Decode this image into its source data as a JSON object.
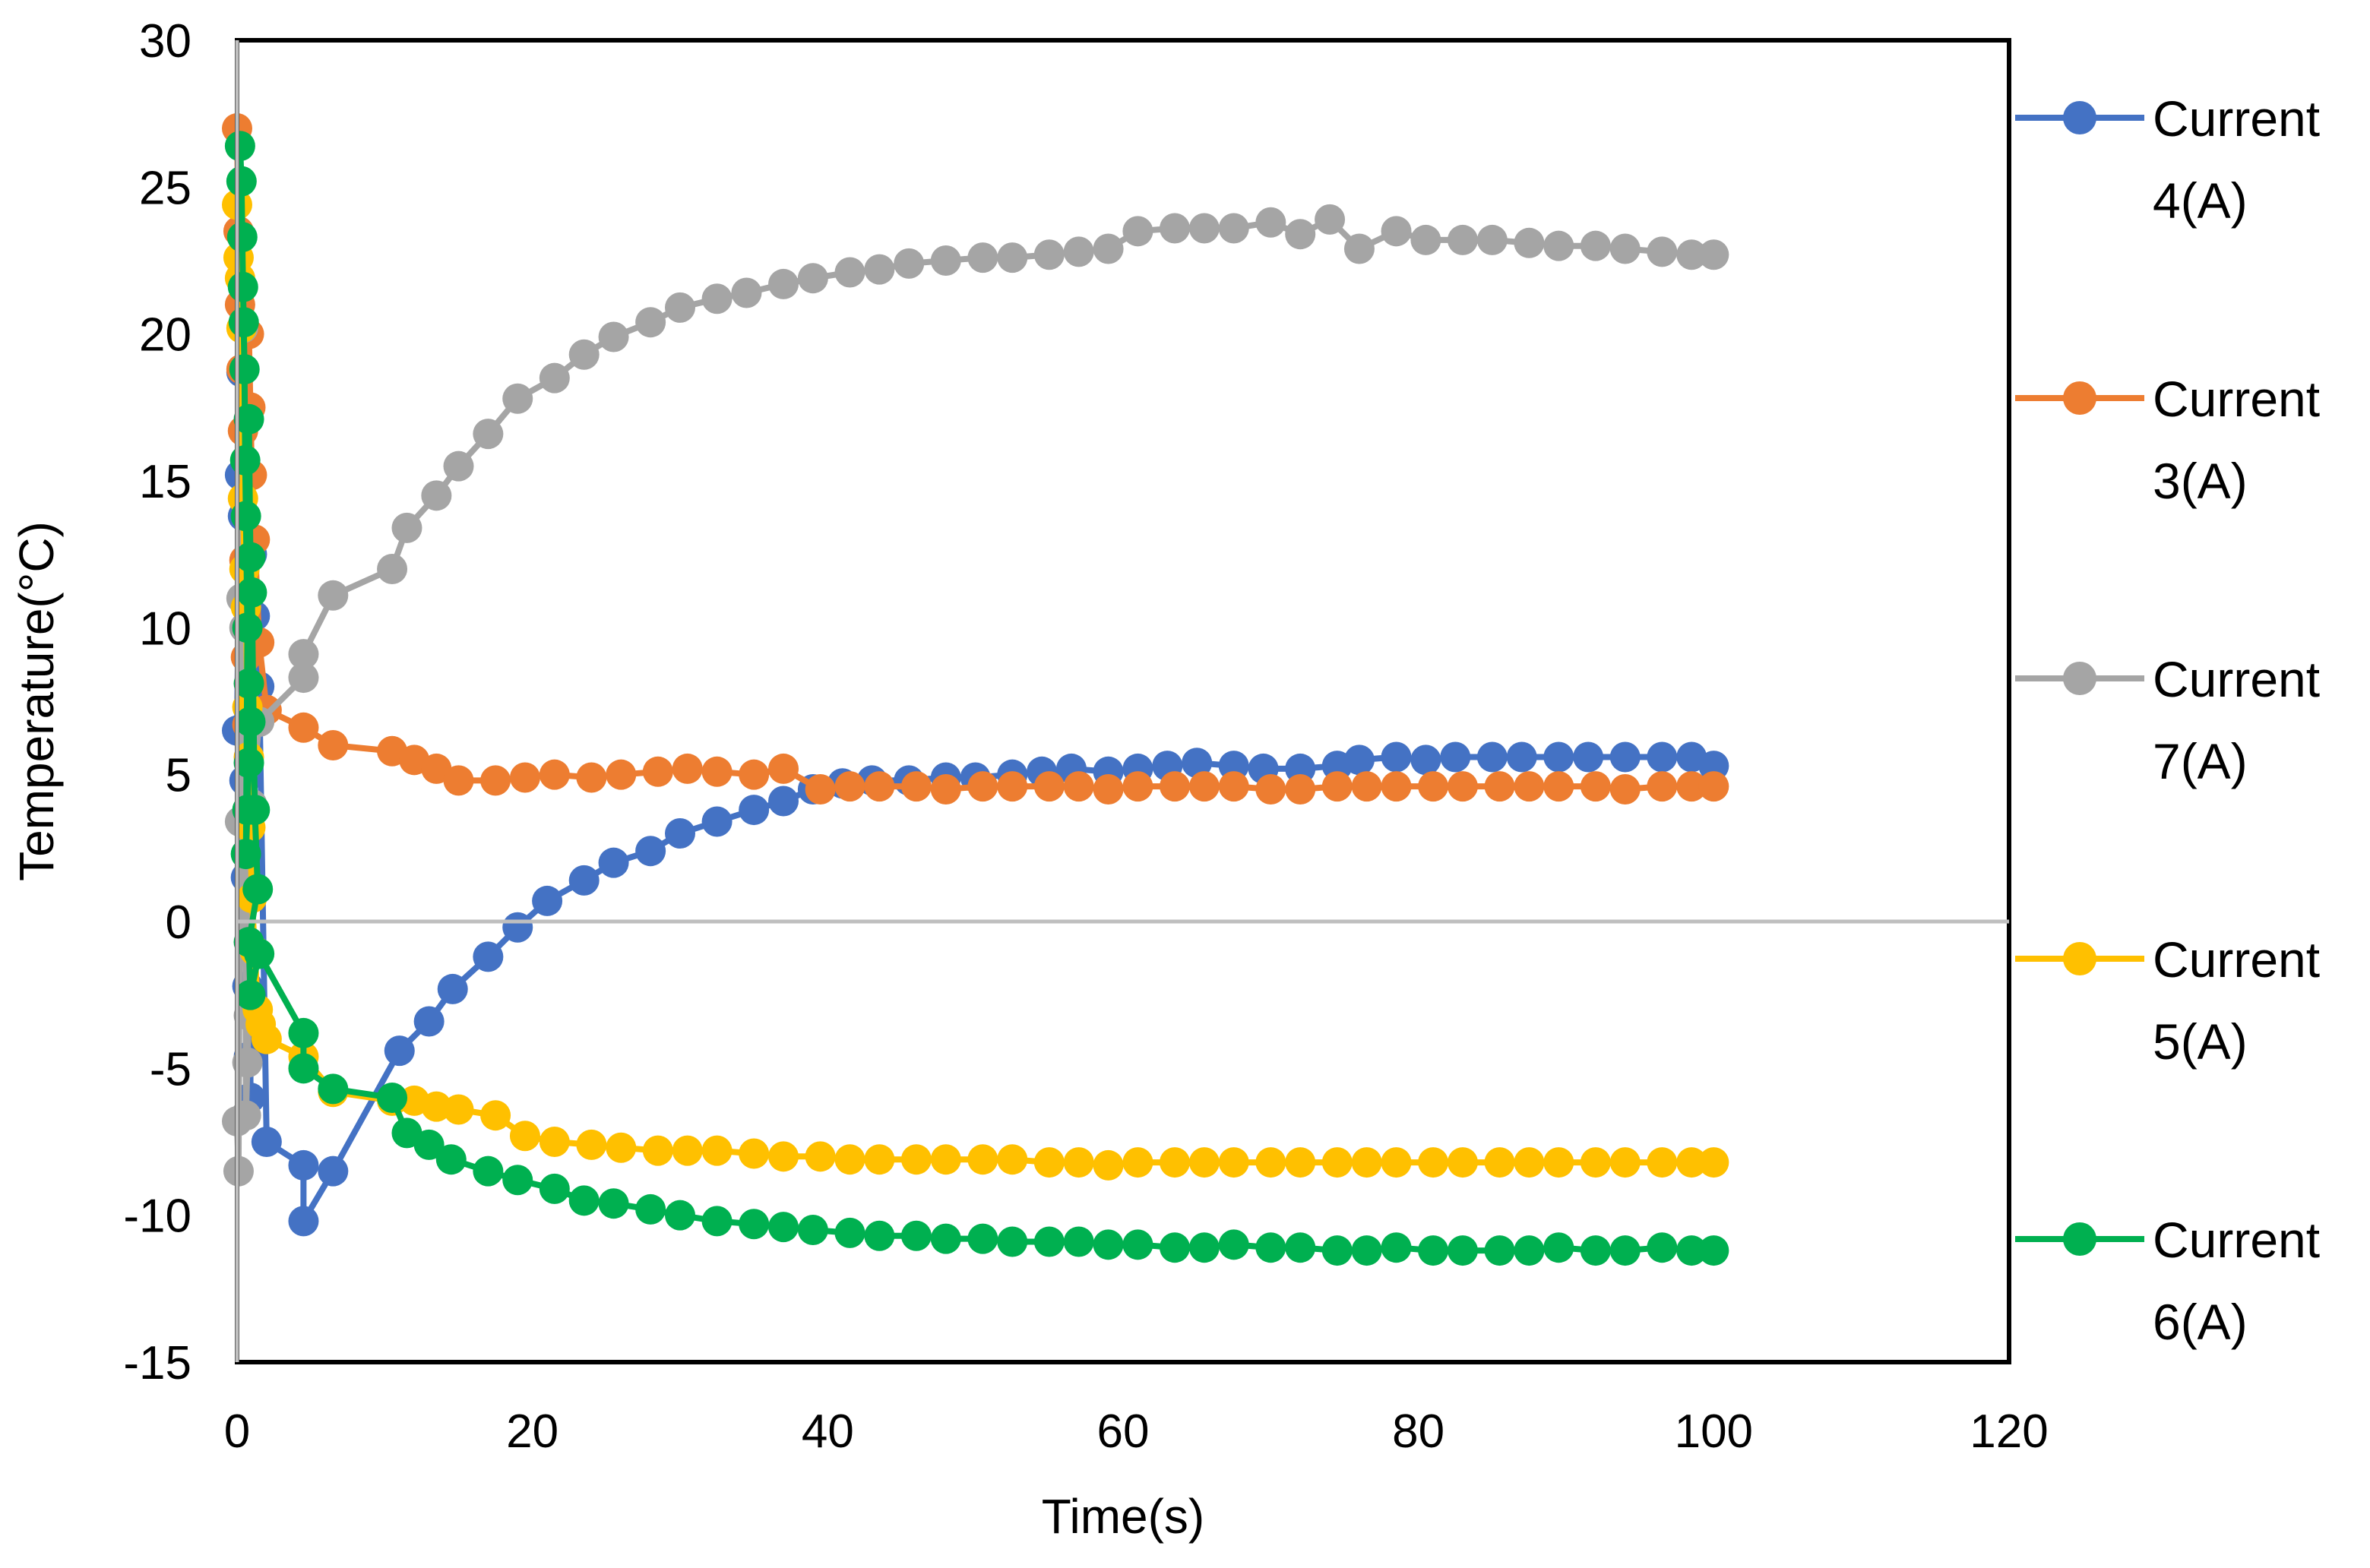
{
  "chart_data": {
    "type": "line",
    "title": "",
    "xlabel": "Time(s)",
    "ylabel": "Temperature(°C)",
    "xlim": [
      0,
      120
    ],
    "ylim": [
      -15,
      30
    ],
    "xticks": [
      "0",
      "20",
      "40",
      "60",
      "80",
      "100",
      "120"
    ],
    "yticks": [
      "-15",
      "-10",
      "-5",
      "0",
      "5",
      "10",
      "15",
      "20",
      "25",
      "30"
    ],
    "legend_position": "right",
    "series": [
      {
        "name": "Current 4(A)",
        "legend_lines": [
          "Current",
          "4(A)"
        ],
        "color": "#4472C4",
        "points": [
          [
            0,
            6.5
          ],
          [
            0.2,
            15.2
          ],
          [
            0.3,
            18.7
          ],
          [
            0.4,
            13.8
          ],
          [
            0.5,
            4.8
          ],
          [
            0.6,
            1.5
          ],
          [
            0.7,
            -2.2
          ],
          [
            0.8,
            -4.6
          ],
          [
            0.9,
            -6
          ],
          [
            1,
            12.5
          ],
          [
            1.2,
            10.4
          ],
          [
            1.5,
            8
          ],
          [
            2,
            -7.5
          ],
          [
            4.5,
            -8.3
          ],
          [
            4.5,
            -10.2
          ],
          [
            6.5,
            -8.5
          ],
          [
            11,
            -4.4
          ],
          [
            13,
            -3.4
          ],
          [
            14.6,
            -2.3
          ],
          [
            17,
            -1.2
          ],
          [
            19,
            -0.2
          ],
          [
            21,
            0.7
          ],
          [
            23.5,
            1.4
          ],
          [
            25.5,
            2
          ],
          [
            28,
            2.4
          ],
          [
            30,
            3
          ],
          [
            32.5,
            3.4
          ],
          [
            35,
            3.8
          ],
          [
            37,
            4.1
          ],
          [
            39,
            4.5
          ],
          [
            41,
            4.7
          ],
          [
            43,
            4.8
          ],
          [
            45.5,
            4.8
          ],
          [
            48,
            4.9
          ],
          [
            50,
            4.9
          ],
          [
            52.5,
            5
          ],
          [
            54.5,
            5.1
          ],
          [
            56.5,
            5.2
          ],
          [
            59,
            5.1
          ],
          [
            61,
            5.2
          ],
          [
            63,
            5.3
          ],
          [
            65,
            5.4
          ],
          [
            67.5,
            5.3
          ],
          [
            69.5,
            5.2
          ],
          [
            72,
            5.2
          ],
          [
            74.5,
            5.3
          ],
          [
            76,
            5.5
          ],
          [
            78.5,
            5.6
          ],
          [
            80.5,
            5.5
          ],
          [
            82.5,
            5.6
          ],
          [
            85,
            5.6
          ],
          [
            87,
            5.6
          ],
          [
            89.5,
            5.6
          ],
          [
            91.5,
            5.6
          ],
          [
            94,
            5.6
          ],
          [
            96.5,
            5.6
          ],
          [
            98.5,
            5.6
          ],
          [
            100,
            5.3
          ]
        ]
      },
      {
        "name": "Current 3(A)",
        "legend_lines": [
          "Current",
          "3(A)"
        ],
        "color": "#ED7D31",
        "points": [
          [
            0,
            27
          ],
          [
            0.1,
            23.5
          ],
          [
            0.2,
            21
          ],
          [
            0.3,
            18.8
          ],
          [
            0.4,
            16.7
          ],
          [
            0.5,
            12.3
          ],
          [
            0.6,
            9
          ],
          [
            0.7,
            6.7
          ],
          [
            0.8,
            20
          ],
          [
            0.9,
            17.5
          ],
          [
            1,
            15.2
          ],
          [
            1.2,
            13
          ],
          [
            1.5,
            9.5
          ],
          [
            2,
            7.2
          ],
          [
            4.5,
            6.6
          ],
          [
            6.5,
            6
          ],
          [
            10.5,
            5.8
          ],
          [
            12,
            5.5
          ],
          [
            13.5,
            5.2
          ],
          [
            15,
            4.8
          ],
          [
            17.5,
            4.8
          ],
          [
            19.5,
            4.9
          ],
          [
            21.5,
            5
          ],
          [
            24,
            4.9
          ],
          [
            26,
            5
          ],
          [
            28.5,
            5.1
          ],
          [
            30.5,
            5.2
          ],
          [
            32.5,
            5.1
          ],
          [
            35,
            5
          ],
          [
            37,
            5.2
          ],
          [
            39.5,
            4.5
          ],
          [
            41.5,
            4.6
          ],
          [
            43.5,
            4.6
          ],
          [
            46,
            4.6
          ],
          [
            48,
            4.5
          ],
          [
            50.5,
            4.6
          ],
          [
            52.5,
            4.6
          ],
          [
            55,
            4.6
          ],
          [
            57,
            4.6
          ],
          [
            59,
            4.5
          ],
          [
            61,
            4.6
          ],
          [
            63.5,
            4.6
          ],
          [
            65.5,
            4.6
          ],
          [
            67.5,
            4.6
          ],
          [
            70,
            4.5
          ],
          [
            72,
            4.5
          ],
          [
            74.5,
            4.6
          ],
          [
            76.5,
            4.6
          ],
          [
            78.5,
            4.6
          ],
          [
            81,
            4.6
          ],
          [
            83,
            4.6
          ],
          [
            85.5,
            4.6
          ],
          [
            87.5,
            4.6
          ],
          [
            89.5,
            4.6
          ],
          [
            92,
            4.6
          ],
          [
            94,
            4.5
          ],
          [
            96.5,
            4.6
          ],
          [
            98.5,
            4.6
          ],
          [
            100,
            4.6
          ]
        ]
      },
      {
        "name": "Current 7(A)",
        "legend_lines": [
          "Current",
          "7(A)"
        ],
        "color": "#A5A5A5",
        "points": [
          [
            0,
            -6.8
          ],
          [
            0.1,
            -8.5
          ],
          [
            0.2,
            3.4
          ],
          [
            0.3,
            11
          ],
          [
            0.4,
            20.2
          ],
          [
            0.5,
            10
          ],
          [
            0.6,
            -6.6
          ],
          [
            0.7,
            -4.8
          ],
          [
            0.8,
            -3.2
          ],
          [
            1,
            4
          ],
          [
            1.5,
            6.8
          ],
          [
            4.5,
            8.3
          ],
          [
            4.5,
            9.1
          ],
          [
            6.5,
            11.1
          ],
          [
            10.5,
            12
          ],
          [
            11.5,
            13.4
          ],
          [
            13.5,
            14.5
          ],
          [
            15,
            15.5
          ],
          [
            17,
            16.6
          ],
          [
            19,
            17.8
          ],
          [
            21.5,
            18.5
          ],
          [
            23.5,
            19.3
          ],
          [
            25.5,
            19.9
          ],
          [
            28,
            20.4
          ],
          [
            30,
            20.9
          ],
          [
            32.5,
            21.2
          ],
          [
            34.5,
            21.4
          ],
          [
            37,
            21.7
          ],
          [
            39,
            21.9
          ],
          [
            41.5,
            22.1
          ],
          [
            43.5,
            22.2
          ],
          [
            45.5,
            22.4
          ],
          [
            48,
            22.5
          ],
          [
            50.5,
            22.6
          ],
          [
            52.5,
            22.6
          ],
          [
            55,
            22.7
          ],
          [
            57,
            22.8
          ],
          [
            59,
            22.9
          ],
          [
            61,
            23.5
          ],
          [
            63.5,
            23.6
          ],
          [
            65.5,
            23.6
          ],
          [
            67.5,
            23.6
          ],
          [
            70,
            23.8
          ],
          [
            72,
            23.4
          ],
          [
            74,
            23.9
          ],
          [
            76,
            22.9
          ],
          [
            78.5,
            23.5
          ],
          [
            80.5,
            23.2
          ],
          [
            83,
            23.2
          ],
          [
            85,
            23.2
          ],
          [
            87.5,
            23.1
          ],
          [
            89.5,
            23
          ],
          [
            92,
            23
          ],
          [
            94,
            22.9
          ],
          [
            96.5,
            22.8
          ],
          [
            98.5,
            22.7
          ],
          [
            100,
            22.7
          ]
        ]
      },
      {
        "name": "Current 5(A)",
        "legend_lines": [
          "Current",
          "5(A)"
        ],
        "color": "#FFC000",
        "points": [
          [
            0,
            24.4
          ],
          [
            0.1,
            22.6
          ],
          [
            0.2,
            21.9
          ],
          [
            0.3,
            20.2
          ],
          [
            0.4,
            14.4
          ],
          [
            0.5,
            12
          ],
          [
            0.6,
            10.7
          ],
          [
            0.7,
            7.3
          ],
          [
            0.8,
            5.6
          ],
          [
            0.9,
            3.2
          ],
          [
            1,
            0.8
          ],
          [
            1.2,
            -1
          ],
          [
            1.4,
            -3
          ],
          [
            1.6,
            -3.5
          ],
          [
            2,
            -4
          ],
          [
            4.5,
            -4.6
          ],
          [
            6.5,
            -5.8
          ],
          [
            10.5,
            -6.1
          ],
          [
            12,
            -6.1
          ],
          [
            13.5,
            -6.3
          ],
          [
            15,
            -6.4
          ],
          [
            17.5,
            -6.6
          ],
          [
            19.5,
            -7.3
          ],
          [
            21.5,
            -7.5
          ],
          [
            24,
            -7.6
          ],
          [
            26,
            -7.7
          ],
          [
            28.5,
            -7.8
          ],
          [
            30.5,
            -7.8
          ],
          [
            32.5,
            -7.8
          ],
          [
            35,
            -7.9
          ],
          [
            37,
            -8
          ],
          [
            39.5,
            -8
          ],
          [
            41.5,
            -8.1
          ],
          [
            43.5,
            -8.1
          ],
          [
            46,
            -8.1
          ],
          [
            48,
            -8.1
          ],
          [
            50.5,
            -8.1
          ],
          [
            52.5,
            -8.1
          ],
          [
            55,
            -8.2
          ],
          [
            57,
            -8.2
          ],
          [
            59,
            -8.3
          ],
          [
            61,
            -8.2
          ],
          [
            63.5,
            -8.2
          ],
          [
            65.5,
            -8.2
          ],
          [
            67.5,
            -8.2
          ],
          [
            70,
            -8.2
          ],
          [
            72,
            -8.2
          ],
          [
            74.5,
            -8.2
          ],
          [
            76.5,
            -8.2
          ],
          [
            78.5,
            -8.2
          ],
          [
            81,
            -8.2
          ],
          [
            83,
            -8.2
          ],
          [
            85.5,
            -8.2
          ],
          [
            87.5,
            -8.2
          ],
          [
            89.5,
            -8.2
          ],
          [
            92,
            -8.2
          ],
          [
            94,
            -8.2
          ],
          [
            96.5,
            -8.2
          ],
          [
            98.5,
            -8.2
          ],
          [
            100,
            -8.2
          ]
        ]
      },
      {
        "name": "Current 6(A)",
        "legend_lines": [
          "Current",
          "6(A)"
        ],
        "color": "#00B050",
        "points": [
          [
            0.2,
            26.4
          ],
          [
            0.3,
            25.2
          ],
          [
            0.35,
            23.3
          ],
          [
            0.4,
            21.6
          ],
          [
            0.45,
            20.4
          ],
          [
            0.5,
            18.8
          ],
          [
            0.55,
            15.7
          ],
          [
            0.6,
            13.8
          ],
          [
            0.7,
            10
          ],
          [
            0.8,
            8.1
          ],
          [
            0.9,
            6.8
          ],
          [
            0.8,
            5.4
          ],
          [
            0.7,
            3.8
          ],
          [
            0.6,
            2.3
          ],
          [
            0.8,
            17.1
          ],
          [
            0.9,
            12.4
          ],
          [
            1,
            11.2
          ],
          [
            1.2,
            3.8
          ],
          [
            1.4,
            1.1
          ],
          [
            0.8,
            -0.7
          ],
          [
            0.9,
            -2.5
          ],
          [
            1.5,
            -1.1
          ],
          [
            4.5,
            -3.8
          ],
          [
            4.5,
            -5
          ],
          [
            6.5,
            -5.7
          ],
          [
            10.5,
            -6
          ],
          [
            11.5,
            -7.2
          ],
          [
            13,
            -7.6
          ],
          [
            14.5,
            -8.1
          ],
          [
            17,
            -8.5
          ],
          [
            19,
            -8.8
          ],
          [
            21.5,
            -9.1
          ],
          [
            23.5,
            -9.5
          ],
          [
            25.5,
            -9.6
          ],
          [
            28,
            -9.8
          ],
          [
            30,
            -10
          ],
          [
            32.5,
            -10.2
          ],
          [
            35,
            -10.3
          ],
          [
            37,
            -10.4
          ],
          [
            39,
            -10.5
          ],
          [
            41.5,
            -10.6
          ],
          [
            43.5,
            -10.7
          ],
          [
            46,
            -10.7
          ],
          [
            48,
            -10.8
          ],
          [
            50.5,
            -10.8
          ],
          [
            52.5,
            -10.9
          ],
          [
            55,
            -10.9
          ],
          [
            57,
            -10.9
          ],
          [
            59,
            -11
          ],
          [
            61,
            -11
          ],
          [
            63.5,
            -11.1
          ],
          [
            65.5,
            -11.1
          ],
          [
            67.5,
            -11
          ],
          [
            70,
            -11.1
          ],
          [
            72,
            -11.1
          ],
          [
            74.5,
            -11.2
          ],
          [
            76.5,
            -11.2
          ],
          [
            78.5,
            -11.1
          ],
          [
            81,
            -11.2
          ],
          [
            83,
            -11.2
          ],
          [
            85.5,
            -11.2
          ],
          [
            87.5,
            -11.2
          ],
          [
            89.5,
            -11.1
          ],
          [
            92,
            -11.2
          ],
          [
            94,
            -11.2
          ],
          [
            96.5,
            -11.1
          ],
          [
            98.5,
            -11.2
          ],
          [
            100,
            -11.2
          ]
        ]
      }
    ]
  }
}
